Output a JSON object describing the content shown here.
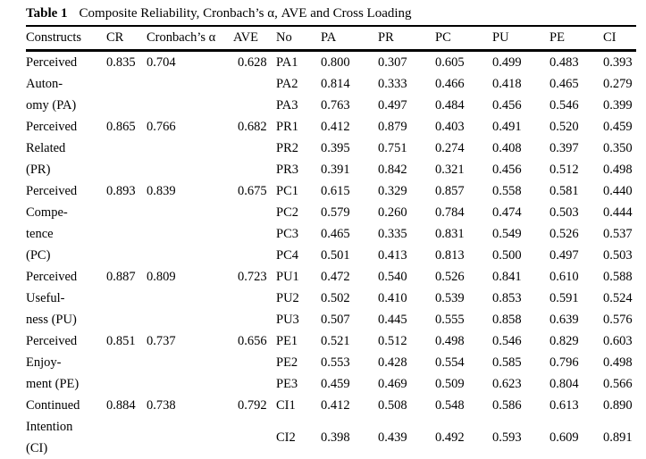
{
  "table_caption": {
    "label": "Table 1",
    "text": "Composite Reliability, Cronbach’s α, AVE and Cross Loading"
  },
  "table": {
    "headers": [
      "Constructs",
      "CR",
      "Cronbach’s α",
      "AVE",
      "No",
      "PA",
      "PR",
      "PC",
      "PU",
      "PE",
      "CI"
    ],
    "groups": [
      {
        "construct": "Perceived\nAuton-\nomy (PA)",
        "cr": "0.835",
        "cronbach": "0.704",
        "ave": "0.628",
        "items": [
          {
            "no": "PA1",
            "values": [
              "0.800",
              "0.307",
              "0.605",
              "0.499",
              "0.483",
              "0.393"
            ]
          },
          {
            "no": "PA2",
            "values": [
              "0.814",
              "0.333",
              "0.466",
              "0.418",
              "0.465",
              "0.279"
            ]
          },
          {
            "no": "PA3",
            "values": [
              "0.763",
              "0.497",
              "0.484",
              "0.456",
              "0.546",
              "0.399"
            ]
          }
        ]
      },
      {
        "construct": "Perceived\nRelated\n(PR)",
        "cr": "0.865",
        "cronbach": "0.766",
        "ave": "0.682",
        "items": [
          {
            "no": "PR1",
            "values": [
              "0.412",
              "0.879",
              "0.403",
              "0.491",
              "0.520",
              "0.459"
            ]
          },
          {
            "no": "PR2",
            "values": [
              "0.395",
              "0.751",
              "0.274",
              "0.408",
              "0.397",
              "0.350"
            ]
          },
          {
            "no": "PR3",
            "values": [
              "0.391",
              "0.842",
              "0.321",
              "0.456",
              "0.512",
              "0.498"
            ]
          }
        ]
      },
      {
        "construct": "Perceived\nCompe-\ntence\n(PC)",
        "cr": "0.893",
        "cronbach": "0.839",
        "ave": "0.675",
        "items": [
          {
            "no": "PC1",
            "values": [
              "0.615",
              "0.329",
              "0.857",
              "0.558",
              "0.581",
              "0.440"
            ]
          },
          {
            "no": "PC2",
            "values": [
              "0.579",
              "0.260",
              "0.784",
              "0.474",
              "0.503",
              "0.444"
            ]
          },
          {
            "no": "PC3",
            "values": [
              "0.465",
              "0.335",
              "0.831",
              "0.549",
              "0.526",
              "0.537"
            ]
          },
          {
            "no": "PC4",
            "values": [
              "0.501",
              "0.413",
              "0.813",
              "0.500",
              "0.497",
              "0.503"
            ]
          }
        ]
      },
      {
        "construct": "Perceived\nUseful-\nness (PU)",
        "cr": "0.887",
        "cronbach": "0.809",
        "ave": "0.723",
        "items": [
          {
            "no": "PU1",
            "values": [
              "0.472",
              "0.540",
              "0.526",
              "0.841",
              "0.610",
              "0.588"
            ]
          },
          {
            "no": "PU2",
            "values": [
              "0.502",
              "0.410",
              "0.539",
              "0.853",
              "0.591",
              "0.524"
            ]
          },
          {
            "no": "PU3",
            "values": [
              "0.507",
              "0.445",
              "0.555",
              "0.858",
              "0.639",
              "0.576"
            ]
          }
        ]
      },
      {
        "construct": "Perceived\nEnjoy-\nment (PE)",
        "cr": "0.851",
        "cronbach": "0.737",
        "ave": "0.656",
        "items": [
          {
            "no": "PE1",
            "values": [
              "0.521",
              "0.512",
              "0.498",
              "0.546",
              "0.829",
              "0.603"
            ]
          },
          {
            "no": "PE2",
            "values": [
              "0.553",
              "0.428",
              "0.554",
              "0.585",
              "0.796",
              "0.498"
            ]
          },
          {
            "no": "PE3",
            "values": [
              "0.459",
              "0.469",
              "0.509",
              "0.623",
              "0.804",
              "0.566"
            ]
          }
        ]
      },
      {
        "construct": "Continued\nIntention\n(CI)",
        "cr": "0.884",
        "cronbach": "0.738",
        "ave": "0.792",
        "items": [
          {
            "no": "CI1",
            "values": [
              "0.412",
              "0.508",
              "0.548",
              "0.586",
              "0.613",
              "0.890"
            ]
          },
          {
            "no": "CI2",
            "values": [
              "0.398",
              "0.439",
              "0.492",
              "0.593",
              "0.609",
              "0.891"
            ]
          }
        ]
      }
    ]
  }
}
